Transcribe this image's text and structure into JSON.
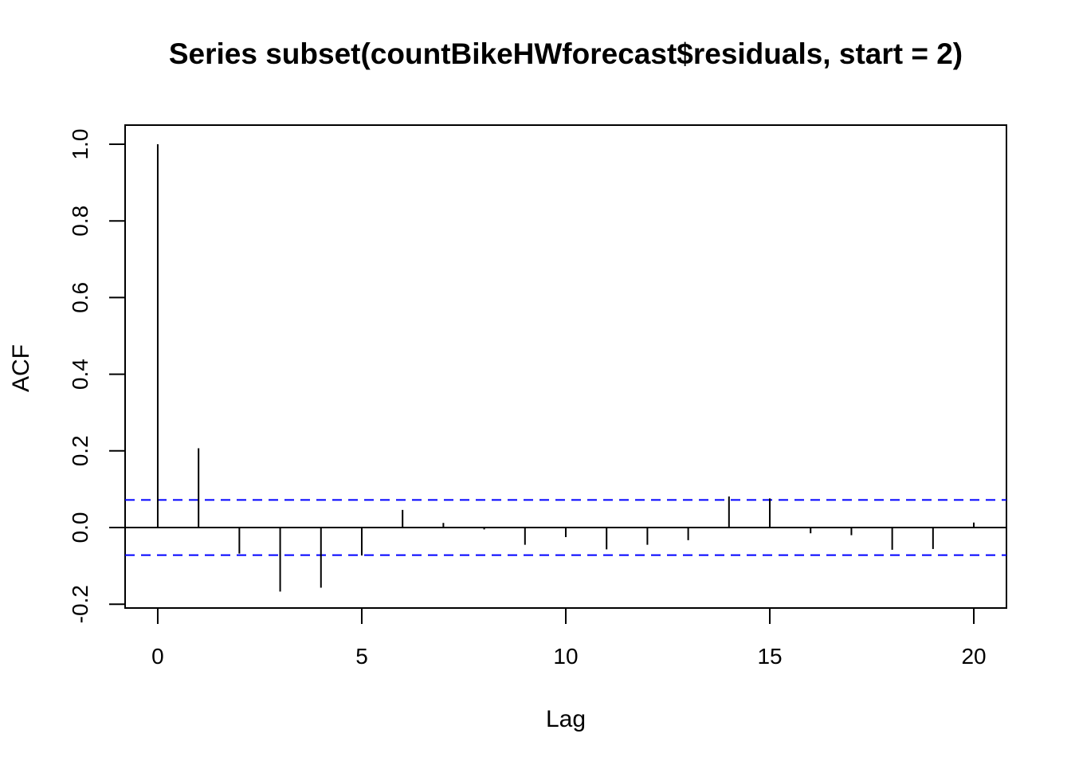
{
  "chart_data": {
    "type": "bar",
    "title": "Series  subset(countBikeHWforecast$residuals, start = 2)",
    "xlabel": "Lag",
    "ylabel": "ACF",
    "xlim": [
      -0.8,
      20.8
    ],
    "ylim": [
      -0.21,
      1.05
    ],
    "x_ticks": [
      0,
      5,
      10,
      15,
      20
    ],
    "x_tick_labels": [
      "0",
      "5",
      "10",
      "15",
      "20"
    ],
    "y_ticks": [
      -0.2,
      0.0,
      0.2,
      0.4,
      0.6,
      0.8,
      1.0
    ],
    "y_tick_labels": [
      "-0.2",
      "0.0",
      "0.2",
      "0.4",
      "0.6",
      "0.8",
      "1.0"
    ],
    "lags": [
      0,
      1,
      2,
      3,
      4,
      5,
      6,
      7,
      8,
      9,
      10,
      11,
      12,
      13,
      14,
      15,
      16,
      17,
      18,
      19,
      20
    ],
    "acf": [
      1.0,
      0.207,
      -0.068,
      -0.167,
      -0.157,
      -0.073,
      0.046,
      0.012,
      -0.005,
      -0.045,
      -0.025,
      -0.057,
      -0.045,
      -0.033,
      0.081,
      0.076,
      -0.015,
      -0.02,
      -0.058,
      -0.056,
      0.013
    ],
    "confidence_bound": 0.072,
    "zero_line": true,
    "grid": false,
    "colors": {
      "bars": "#000000",
      "confidence_lines": "#0000ff",
      "frame": "#000000"
    }
  }
}
